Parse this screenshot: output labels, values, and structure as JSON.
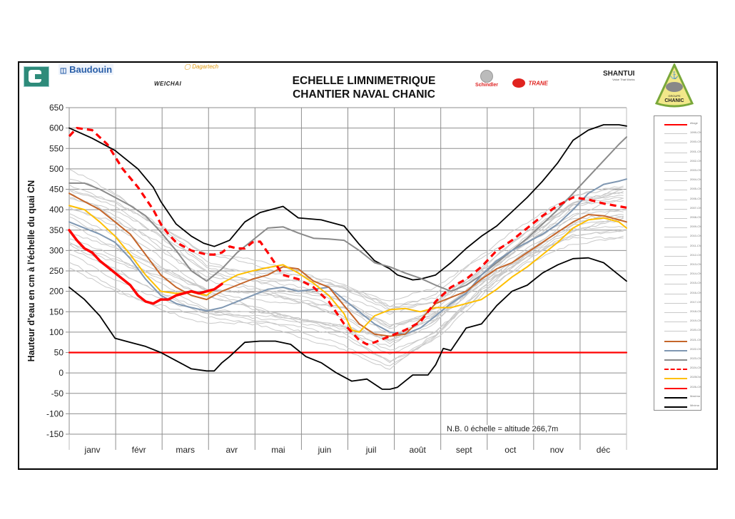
{
  "header": {
    "title_line1": "ECHELLE  LIMNIMETRIQUE",
    "title_line2": "CHANTIER NAVAL CHANIC",
    "sponsors": [
      "Baudouin",
      "Dagartech",
      "WEICHAI",
      "Schindler",
      "TRANE",
      "SHANTUI",
      "GROUPE CHANIC"
    ],
    "sponsor_texts": {
      "baudouin": "Baudouin",
      "dagartech": "Dagartech",
      "weichai": "WEICHAI",
      "schindler": "Schindler",
      "trane": "TRANE",
      "shantui": "SHANTUI",
      "shantui_tag": "Value That Works",
      "chanic_group": "GROUPE",
      "chanic": "CHANIC"
    }
  },
  "note": "N.B.  0 échelle = altitude 266,7m",
  "chart_data": {
    "type": "line",
    "title": "ECHELLE LIMNIMETRIQUE — CHANTIER NAVAL CHANIC",
    "xlabel": "",
    "ylabel": "Hauteur d'eau en cm à l'échelle du quai CN",
    "ylim": [
      -150,
      650
    ],
    "yticks": [
      -150,
      -100,
      -50,
      0,
      50,
      100,
      150,
      200,
      250,
      300,
      350,
      400,
      450,
      500,
      550,
      600,
      650
    ],
    "xlim": [
      0,
      365
    ],
    "x_unit": "day of year",
    "categories": [
      "janv",
      "févr",
      "mars",
      "avr",
      "mai",
      "juin",
      "juil",
      "août",
      "sept",
      "oct",
      "nov",
      "déc"
    ],
    "grid": true,
    "legend_position": "right",
    "legend": [
      "étiage",
      "1999-CN",
      "2000-CN",
      "2001-CN",
      "2002-CN",
      "2003-CN",
      "2004-CN",
      "2005-CN",
      "2006-CN",
      "2007-CN",
      "2008-CN",
      "2009-CN",
      "2010-CN",
      "2011-CN",
      "2012-CN",
      "2013-CN",
      "2014-CN",
      "2015-CN",
      "2016-CN",
      "2017-CN",
      "2018-CN",
      "2019-CN",
      "2020-CN",
      "2021-CN",
      "2022-CN",
      "2023-CN",
      "2024-CN",
      "2025CN",
      "2026-CN",
      "Maxima",
      "Minima"
    ],
    "series": [
      {
        "name": "étiage",
        "color": "#ff0000",
        "style": "solid",
        "x": [
          0,
          365
        ],
        "y": [
          50,
          50
        ]
      },
      {
        "name": "Maxima",
        "color": "#000000",
        "style": "solid",
        "x": [
          0,
          15,
          30,
          45,
          55,
          60,
          70,
          80,
          88,
          95,
          105,
          115,
          125,
          135,
          140,
          150,
          165,
          180,
          190,
          200,
          210,
          215,
          225,
          230,
          240,
          250,
          260,
          270,
          280,
          290,
          300,
          310,
          320,
          330,
          340,
          350,
          360,
          365
        ],
        "y": [
          600,
          575,
          545,
          500,
          455,
          420,
          365,
          335,
          318,
          310,
          325,
          370,
          393,
          403,
          408,
          380,
          375,
          360,
          315,
          275,
          255,
          240,
          228,
          230,
          240,
          270,
          305,
          335,
          360,
          395,
          430,
          470,
          515,
          570,
          595,
          608,
          608,
          605
        ]
      },
      {
        "name": "Minima",
        "color": "#000000",
        "style": "solid",
        "x": [
          0,
          10,
          20,
          30,
          40,
          50,
          60,
          70,
          80,
          90,
          95,
          100,
          105,
          115,
          125,
          135,
          145,
          155,
          165,
          175,
          185,
          195,
          205,
          210,
          215,
          220,
          225,
          235,
          240,
          245,
          250,
          260,
          270,
          280,
          290,
          300,
          310,
          320,
          330,
          340,
          350,
          355,
          360,
          365
        ],
        "y": [
          210,
          180,
          140,
          85,
          75,
          65,
          50,
          30,
          10,
          5,
          5,
          25,
          40,
          75,
          78,
          78,
          70,
          40,
          25,
          0,
          -20,
          -15,
          -40,
          -40,
          -35,
          -20,
          -5,
          -5,
          20,
          60,
          55,
          110,
          120,
          165,
          200,
          215,
          245,
          265,
          280,
          282,
          270,
          255,
          240,
          225
        ]
      },
      {
        "name": "2024-CN",
        "color": "#ff0000",
        "style": "dashed",
        "x": [
          0,
          5,
          15,
          25,
          35,
          45,
          55,
          60,
          65,
          70,
          75,
          80,
          90,
          95,
          100,
          105,
          110,
          115,
          120,
          125,
          130,
          140,
          150,
          160,
          170,
          180,
          190,
          195,
          200,
          210,
          220,
          230,
          240,
          250,
          260,
          270,
          280,
          290,
          300,
          310,
          320,
          330,
          340,
          350,
          365
        ],
        "y": [
          580,
          600,
          595,
          560,
          500,
          455,
          400,
          365,
          340,
          320,
          310,
          300,
          290,
          290,
          295,
          310,
          305,
          305,
          320,
          322,
          295,
          240,
          230,
          210,
          175,
          120,
          80,
          70,
          75,
          90,
          105,
          125,
          175,
          210,
          230,
          260,
          300,
          325,
          355,
          385,
          410,
          430,
          425,
          415,
          405
        ]
      },
      {
        "name": "2023-CN",
        "color": "#8a8a8a",
        "style": "solid",
        "x": [
          0,
          10,
          20,
          30,
          40,
          50,
          60,
          70,
          80,
          90,
          100,
          110,
          120,
          130,
          140,
          150,
          160,
          170,
          180,
          190,
          200,
          210,
          220,
          230,
          240,
          250,
          260,
          270,
          280,
          290,
          300,
          310,
          320,
          330,
          340,
          350,
          360,
          365
        ],
        "y": [
          465,
          465,
          450,
          430,
          410,
          385,
          345,
          300,
          250,
          225,
          255,
          295,
          325,
          355,
          358,
          343,
          330,
          328,
          325,
          300,
          270,
          260,
          245,
          232,
          215,
          200,
          215,
          240,
          270,
          300,
          330,
          365,
          400,
          440,
          480,
          520,
          560,
          578
        ]
      },
      {
        "name": "2022-CN",
        "color": "#7f97b2",
        "style": "solid",
        "x": [
          0,
          10,
          20,
          30,
          40,
          50,
          60,
          70,
          80,
          90,
          100,
          110,
          120,
          130,
          140,
          150,
          160,
          170,
          180,
          190,
          200,
          210,
          220,
          230,
          240,
          250,
          260,
          270,
          280,
          290,
          300,
          310,
          320,
          330,
          340,
          350,
          360,
          365
        ],
        "y": [
          370,
          355,
          340,
          320,
          280,
          230,
          190,
          170,
          160,
          152,
          160,
          175,
          190,
          205,
          210,
          200,
          205,
          210,
          180,
          150,
          120,
          100,
          95,
          110,
          140,
          170,
          195,
          240,
          275,
          300,
          320,
          340,
          365,
          400,
          440,
          462,
          470,
          475
        ]
      },
      {
        "name": "2021-CN",
        "color": "#c5662a",
        "style": "solid",
        "x": [
          0,
          10,
          20,
          30,
          40,
          50,
          60,
          70,
          80,
          90,
          100,
          110,
          120,
          130,
          140,
          150,
          160,
          170,
          180,
          190,
          200,
          210,
          220,
          230,
          240,
          250,
          260,
          270,
          280,
          290,
          300,
          310,
          320,
          330,
          340,
          350,
          360,
          365
        ],
        "y": [
          440,
          420,
          400,
          370,
          340,
          290,
          240,
          210,
          190,
          180,
          200,
          215,
          230,
          240,
          260,
          255,
          225,
          210,
          165,
          120,
          95,
          90,
          95,
          130,
          170,
          185,
          200,
          230,
          255,
          270,
          295,
          320,
          345,
          370,
          388,
          385,
          375,
          370
        ]
      },
      {
        "name": "2025CN",
        "color": "#ffbf00",
        "style": "solid",
        "x": [
          0,
          10,
          20,
          30,
          40,
          50,
          60,
          70,
          80,
          90,
          100,
          110,
          120,
          130,
          140,
          150,
          160,
          170,
          180,
          185,
          190,
          200,
          210,
          220,
          230,
          240,
          250,
          260,
          270,
          280,
          290,
          300,
          310,
          320,
          330,
          340,
          350,
          360,
          365
        ],
        "y": [
          410,
          400,
          370,
          335,
          290,
          240,
          200,
          195,
          198,
          190,
          220,
          240,
          250,
          258,
          265,
          245,
          220,
          190,
          145,
          105,
          100,
          140,
          155,
          158,
          150,
          160,
          160,
          170,
          180,
          205,
          235,
          260,
          290,
          320,
          355,
          375,
          380,
          370,
          355
        ]
      },
      {
        "name": "2026-CN",
        "color": "#ff0000",
        "style": "solid-thick",
        "x": [
          0,
          5,
          10,
          15,
          20,
          30,
          40,
          45,
          50,
          55,
          60,
          65,
          70,
          75,
          80,
          85,
          90,
          95,
          100
        ],
        "y": [
          350,
          325,
          305,
          295,
          275,
          245,
          215,
          190,
          175,
          170,
          180,
          180,
          190,
          195,
          200,
          195,
          200,
          205,
          218
        ]
      },
      {
        "name": "1999-2020 (historical years)",
        "color": "#c9c9c9",
        "style": "solid-thin",
        "x": [
          0,
          30,
          60,
          90,
          120,
          150,
          180,
          210,
          240,
          270,
          300,
          330,
          365
        ],
        "y_band_upper": [
          505,
          460,
          380,
          300,
          280,
          260,
          230,
          180,
          200,
          280,
          360,
          440,
          470
        ],
        "y_band_lower": [
          250,
          200,
          160,
          120,
          100,
          80,
          60,
          10,
          80,
          180,
          260,
          320,
          340
        ]
      }
    ]
  }
}
